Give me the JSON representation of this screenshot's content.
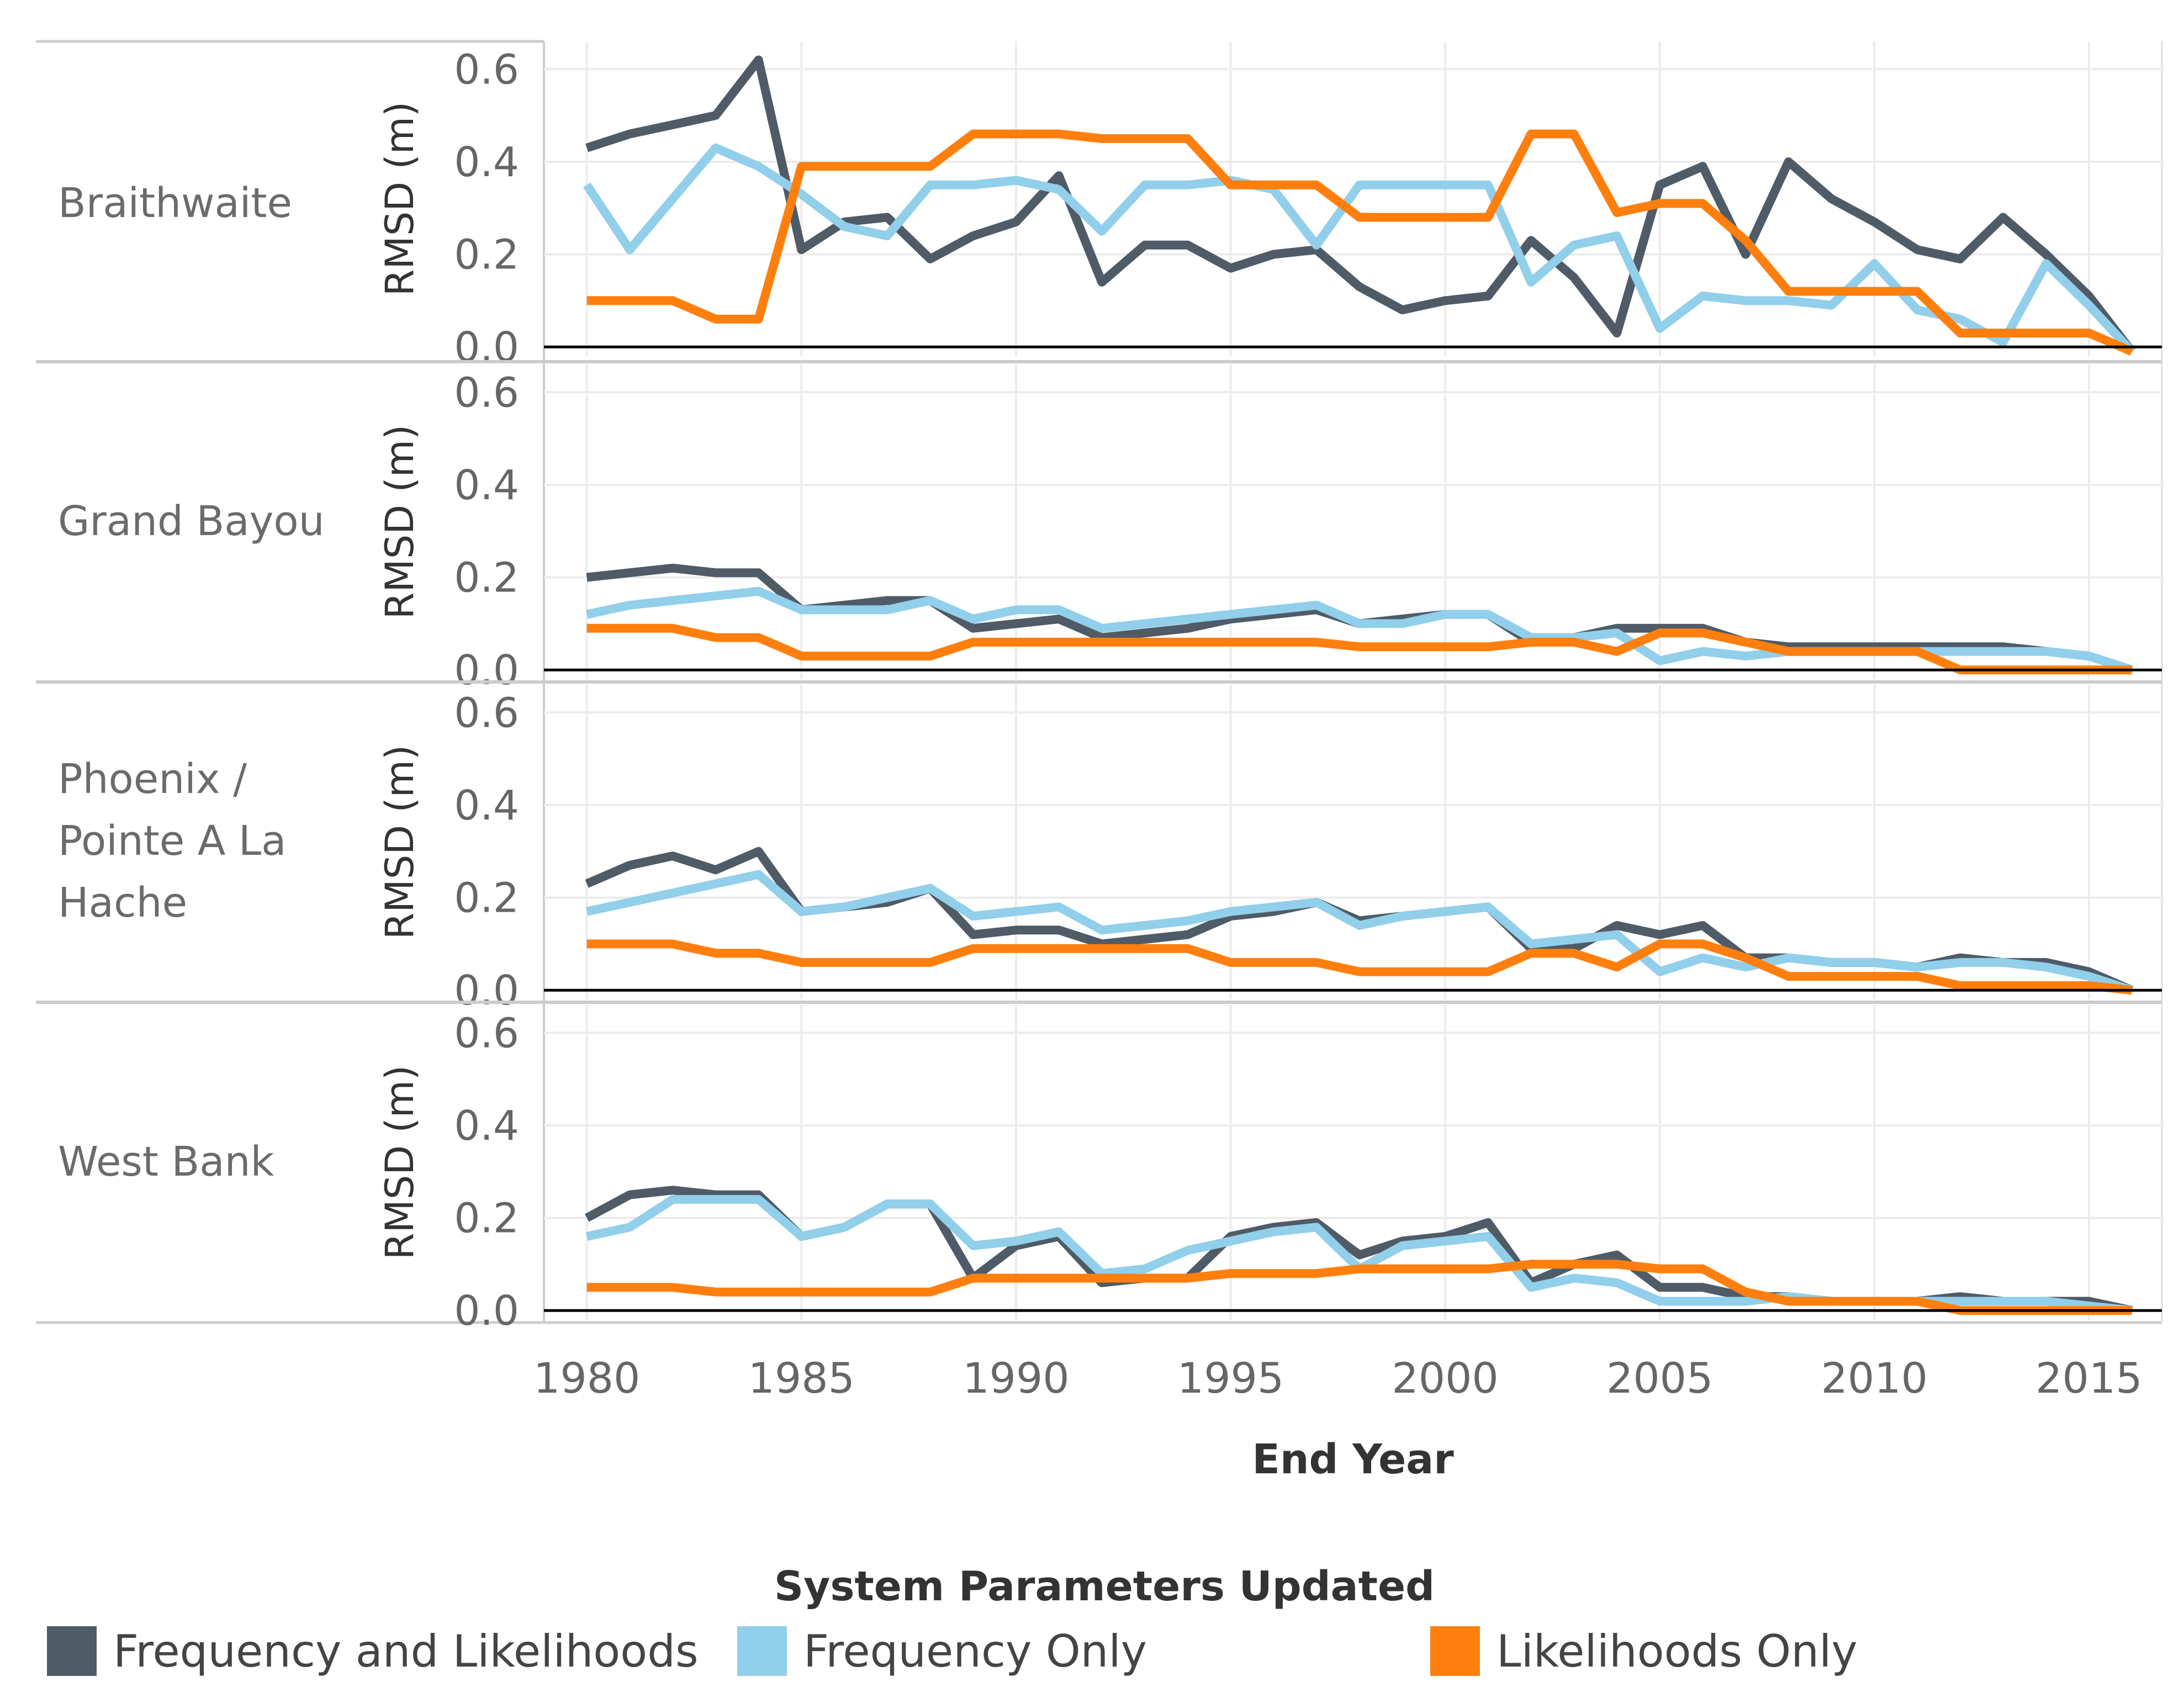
{
  "chart_data": {
    "type": "line",
    "xlabel": "End Year",
    "ylabel": "RMSD (m)",
    "ylim": [
      -0.02,
      0.66
    ],
    "xlim": [
      1979,
      2016.7
    ],
    "y_ticks": [
      0.0,
      0.2,
      0.4,
      0.6
    ],
    "y_tick_labels": [
      "0.0",
      "0.2",
      "0.4",
      "0.6"
    ],
    "x_ticks": [
      1980,
      1985,
      1990,
      1995,
      2000,
      2005,
      2010,
      2015
    ],
    "x_tick_labels": [
      "1980",
      "1985",
      "1990",
      "1995",
      "2000",
      "2005",
      "2010",
      "2015"
    ],
    "legend": {
      "title": "System Parameters Updated",
      "placement": "bottom",
      "entries": [
        "Frequency and Likelihoods",
        "Frequency Only",
        "Likelihoods Only"
      ]
    },
    "years": [
      1980,
      1981,
      1982,
      1983,
      1984,
      1985,
      1986,
      1987,
      1988,
      1989,
      1990,
      1991,
      1992,
      1993,
      1994,
      1995,
      1996,
      1997,
      1998,
      1999,
      2000,
      2001,
      2002,
      2003,
      2004,
      2005,
      2006,
      2007,
      2008,
      2009,
      2010,
      2011,
      2012,
      2013,
      2014,
      2015,
      2016
    ],
    "panels": [
      {
        "name": "Braithwaite",
        "series": [
          {
            "name": "Frequency and Likelihoods",
            "color": "#4f5b66",
            "values": [
              0.43,
              0.46,
              0.48,
              0.5,
              0.62,
              0.21,
              0.27,
              0.28,
              0.19,
              0.24,
              0.27,
              0.37,
              0.14,
              0.22,
              0.22,
              0.17,
              0.2,
              0.21,
              0.13,
              0.08,
              0.1,
              0.11,
              0.23,
              0.15,
              0.03,
              0.35,
              0.39,
              0.2,
              0.4,
              0.32,
              0.27,
              0.21,
              0.19,
              0.28,
              0.2,
              0.11,
              -0.01
            ]
          },
          {
            "name": "Frequency Only",
            "color": "#91cfeb",
            "values": [
              0.35,
              0.21,
              0.32,
              0.43,
              0.39,
              0.33,
              0.26,
              0.24,
              0.35,
              0.35,
              0.36,
              0.34,
              0.25,
              0.35,
              0.35,
              0.36,
              0.34,
              0.22,
              0.35,
              0.35,
              0.35,
              0.35,
              0.14,
              0.22,
              0.24,
              0.04,
              0.11,
              0.1,
              0.1,
              0.09,
              0.18,
              0.08,
              0.06,
              0.01,
              0.18,
              0.09,
              -0.01
            ]
          },
          {
            "name": "Likelihoods Only",
            "color": "#ff7f0e",
            "values": [
              0.1,
              0.1,
              0.1,
              0.06,
              0.06,
              0.39,
              0.39,
              0.39,
              0.39,
              0.46,
              0.46,
              0.46,
              0.45,
              0.45,
              0.45,
              0.35,
              0.35,
              0.35,
              0.28,
              0.28,
              0.28,
              0.28,
              0.46,
              0.46,
              0.29,
              0.31,
              0.31,
              0.23,
              0.12,
              0.12,
              0.12,
              0.12,
              0.03,
              0.03,
              0.03,
              0.03,
              -0.01
            ]
          }
        ]
      },
      {
        "name": "Grand Bayou",
        "series": [
          {
            "name": "Frequency and Likelihoods",
            "color": "#4f5b66",
            "values": [
              0.2,
              0.21,
              0.22,
              0.21,
              0.21,
              0.13,
              0.14,
              0.15,
              0.15,
              0.09,
              0.1,
              0.11,
              0.07,
              0.08,
              0.09,
              0.11,
              0.12,
              0.13,
              0.1,
              0.11,
              0.12,
              0.12,
              0.06,
              0.07,
              0.09,
              0.09,
              0.09,
              0.06,
              0.05,
              0.05,
              0.05,
              0.05,
              0.05,
              0.05,
              0.04,
              0.03,
              0.0
            ]
          },
          {
            "name": "Frequency Only",
            "color": "#91cfeb",
            "values": [
              0.12,
              0.14,
              0.15,
              0.16,
              0.17,
              0.13,
              0.13,
              0.13,
              0.15,
              0.11,
              0.13,
              0.13,
              0.09,
              0.1,
              0.11,
              0.12,
              0.13,
              0.14,
              0.1,
              0.1,
              0.12,
              0.12,
              0.07,
              0.07,
              0.08,
              0.02,
              0.04,
              0.03,
              0.04,
              0.04,
              0.04,
              0.04,
              0.04,
              0.04,
              0.04,
              0.03,
              0.0
            ]
          },
          {
            "name": "Likelihoods Only",
            "color": "#ff7f0e",
            "values": [
              0.09,
              0.09,
              0.09,
              0.07,
              0.07,
              0.03,
              0.03,
              0.03,
              0.03,
              0.06,
              0.06,
              0.06,
              0.06,
              0.06,
              0.06,
              0.06,
              0.06,
              0.06,
              0.05,
              0.05,
              0.05,
              0.05,
              0.06,
              0.06,
              0.04,
              0.08,
              0.08,
              0.06,
              0.04,
              0.04,
              0.04,
              0.04,
              0.0,
              0.0,
              0.0,
              0.0,
              0.0
            ]
          }
        ]
      },
      {
        "name": "Phoenix / Pointe A La Hache",
        "series": [
          {
            "name": "Frequency and Likelihoods",
            "color": "#4f5b66",
            "values": [
              0.23,
              0.27,
              0.29,
              0.26,
              0.3,
              0.17,
              0.18,
              0.19,
              0.22,
              0.12,
              0.13,
              0.13,
              0.1,
              0.11,
              0.12,
              0.16,
              0.17,
              0.19,
              0.15,
              0.16,
              0.17,
              0.18,
              0.09,
              0.09,
              0.14,
              0.12,
              0.14,
              0.07,
              0.07,
              0.06,
              0.06,
              0.05,
              0.07,
              0.06,
              0.06,
              0.04,
              0.0
            ]
          },
          {
            "name": "Frequency Only",
            "color": "#91cfeb",
            "values": [
              0.17,
              0.19,
              0.21,
              0.23,
              0.25,
              0.17,
              0.18,
              0.2,
              0.22,
              0.16,
              0.17,
              0.18,
              0.13,
              0.14,
              0.15,
              0.17,
              0.18,
              0.19,
              0.14,
              0.16,
              0.17,
              0.18,
              0.1,
              0.11,
              0.12,
              0.04,
              0.07,
              0.05,
              0.07,
              0.06,
              0.06,
              0.05,
              0.06,
              0.06,
              0.05,
              0.03,
              0.0
            ]
          },
          {
            "name": "Likelihoods Only",
            "color": "#ff7f0e",
            "values": [
              0.1,
              0.1,
              0.1,
              0.08,
              0.08,
              0.06,
              0.06,
              0.06,
              0.06,
              0.09,
              0.09,
              0.09,
              0.09,
              0.09,
              0.09,
              0.06,
              0.06,
              0.06,
              0.04,
              0.04,
              0.04,
              0.04,
              0.08,
              0.08,
              0.05,
              0.1,
              0.1,
              0.07,
              0.03,
              0.03,
              0.03,
              0.03,
              0.01,
              0.01,
              0.01,
              0.01,
              0.0
            ]
          }
        ]
      },
      {
        "name": "West Bank",
        "series": [
          {
            "name": "Frequency and Likelihoods",
            "color": "#4f5b66",
            "values": [
              0.2,
              0.25,
              0.26,
              0.25,
              0.25,
              0.16,
              0.18,
              0.23,
              0.23,
              0.07,
              0.14,
              0.16,
              0.06,
              0.07,
              0.07,
              0.16,
              0.18,
              0.19,
              0.12,
              0.15,
              0.16,
              0.19,
              0.06,
              0.1,
              0.12,
              0.05,
              0.05,
              0.03,
              0.03,
              0.02,
              0.02,
              0.02,
              0.03,
              0.02,
              0.02,
              0.02,
              0.0
            ]
          },
          {
            "name": "Frequency Only",
            "color": "#91cfeb",
            "values": [
              0.16,
              0.18,
              0.24,
              0.24,
              0.24,
              0.16,
              0.18,
              0.23,
              0.23,
              0.14,
              0.15,
              0.17,
              0.08,
              0.09,
              0.13,
              0.15,
              0.17,
              0.18,
              0.09,
              0.14,
              0.15,
              0.16,
              0.05,
              0.07,
              0.06,
              0.02,
              0.02,
              0.02,
              0.03,
              0.02,
              0.02,
              0.02,
              0.02,
              0.02,
              0.02,
              0.01,
              0.0
            ]
          },
          {
            "name": "Likelihoods Only",
            "color": "#ff7f0e",
            "values": [
              0.05,
              0.05,
              0.05,
              0.04,
              0.04,
              0.04,
              0.04,
              0.04,
              0.04,
              0.07,
              0.07,
              0.07,
              0.07,
              0.07,
              0.07,
              0.08,
              0.08,
              0.08,
              0.09,
              0.09,
              0.09,
              0.09,
              0.1,
              0.1,
              0.1,
              0.09,
              0.09,
              0.04,
              0.02,
              0.02,
              0.02,
              0.02,
              0.0,
              0.0,
              0.0,
              0.0,
              0.0
            ]
          }
        ]
      }
    ]
  }
}
